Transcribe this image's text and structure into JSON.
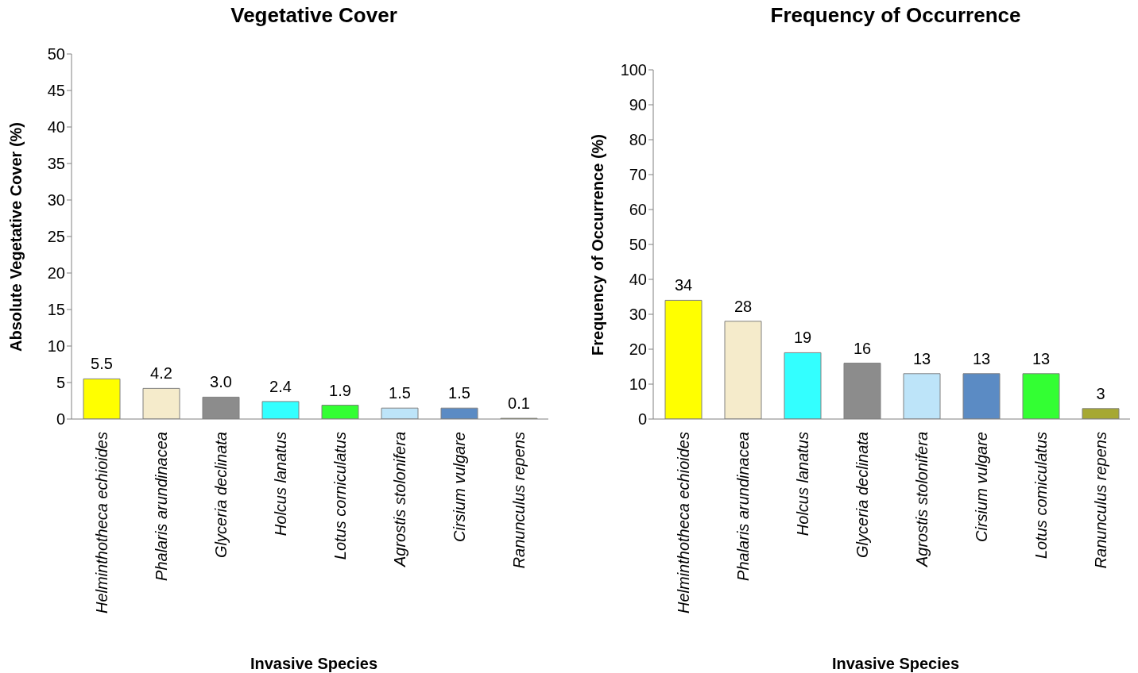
{
  "chart_data": [
    {
      "type": "bar",
      "title": "Vegetative Cover",
      "xlabel": "Invasive Species",
      "ylabel": "Absolute Vegetative Cover (%)",
      "categories": [
        "Helminthotheca echioides",
        "Phalaris arundinacea",
        "Glyceria declinata",
        "Holcus lanatus",
        "Lotus corniculatus",
        "Agrostis stolonifera",
        "Cirsium vulgare",
        "Ranunculus repens"
      ],
      "values": [
        5.5,
        4.2,
        3.0,
        2.4,
        1.9,
        1.5,
        1.5,
        0.1
      ],
      "value_labels": [
        "5.5",
        "4.2",
        "3.0",
        "2.4",
        "1.9",
        "1.5",
        "1.5",
        "0.1"
      ],
      "colors": [
        "#ffff00",
        "#f5ebcb",
        "#8c8c8c",
        "#33ffff",
        "#33ff33",
        "#bde4f9",
        "#5b8bc4",
        "#a6a832"
      ],
      "ylim": [
        0,
        50
      ],
      "yticks": [
        0,
        5,
        10,
        15,
        20,
        25,
        30,
        35,
        40,
        45,
        50
      ],
      "grid": false,
      "legend": false
    },
    {
      "type": "bar",
      "title": "Frequency of Occurrence",
      "xlabel": "Invasive Species",
      "ylabel": "Frequency of Occurrence (%)",
      "categories": [
        "Helminthotheca echioides",
        "Phalaris arundinacea",
        "Holcus lanatus",
        "Glyceria declinata",
        "Agrostis stolonifera",
        "Cirsium vulgare",
        "Lotus comiculatus",
        "Ranunculus repens"
      ],
      "values": [
        34,
        28,
        19,
        16,
        13,
        13,
        13,
        3
      ],
      "colors": [
        "#ffff00",
        "#f5ebcb",
        "#33ffff",
        "#8c8c8c",
        "#bde4f9",
        "#5b8bc4",
        "#33ff33",
        "#a6a832"
      ],
      "ylim": [
        0,
        100
      ],
      "yticks": [
        0,
        10,
        20,
        30,
        40,
        50,
        60,
        70,
        80,
        90,
        100
      ],
      "data_labels": true,
      "grid": false,
      "legend": false
    }
  ]
}
